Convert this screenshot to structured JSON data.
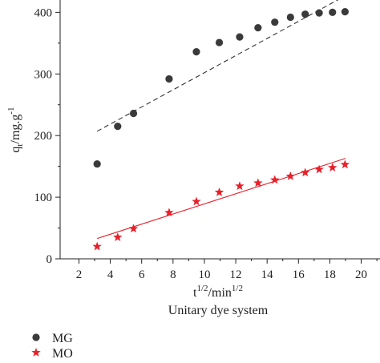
{
  "chart_data": {
    "type": "scatter",
    "subtitle": "Unitary dye system",
    "xlabel_base": "t",
    "xlabel_exp1": "1/2",
    "xlabel_mid": "/min",
    "xlabel_exp2": "1/2",
    "ylabel_base": "q",
    "ylabel_sub": "t",
    "ylabel_mid": "/mg.g",
    "ylabel_sup": "-1",
    "xlim": [
      0.8,
      21.2
    ],
    "ylim": [
      0,
      420
    ],
    "x_ticks": [
      2,
      4,
      6,
      8,
      10,
      12,
      14,
      16,
      18,
      20
    ],
    "y_ticks": [
      0,
      100,
      200,
      300,
      400
    ],
    "legend_position": "bottom-left",
    "series": [
      {
        "name": "MG",
        "marker": "circle",
        "color": "#3a3a3a",
        "x": [
          3.16,
          4.47,
          5.48,
          7.75,
          9.49,
          10.95,
          12.25,
          13.42,
          14.49,
          15.49,
          16.43,
          17.32,
          18.17,
          18.97
        ],
        "y": [
          154,
          215,
          236,
          292,
          336,
          351,
          360,
          375,
          384,
          392,
          397,
          399,
          400,
          401
        ],
        "fit": {
          "style": "dashed",
          "x": [
            3.16,
            19.0
          ],
          "y": [
            207,
            427
          ]
        }
      },
      {
        "name": "MO",
        "marker": "star",
        "color": "#e8202a",
        "x": [
          3.16,
          4.47,
          5.48,
          7.75,
          9.49,
          10.95,
          12.25,
          13.42,
          14.49,
          15.49,
          16.43,
          17.32,
          18.17,
          18.97
        ],
        "y": [
          20,
          35,
          49,
          75,
          93,
          108,
          118,
          123,
          128,
          134,
          140,
          145,
          148,
          153
        ],
        "fit": {
          "style": "solid",
          "x": [
            3.16,
            19.0
          ],
          "y": [
            33,
            163
          ]
        }
      }
    ]
  }
}
